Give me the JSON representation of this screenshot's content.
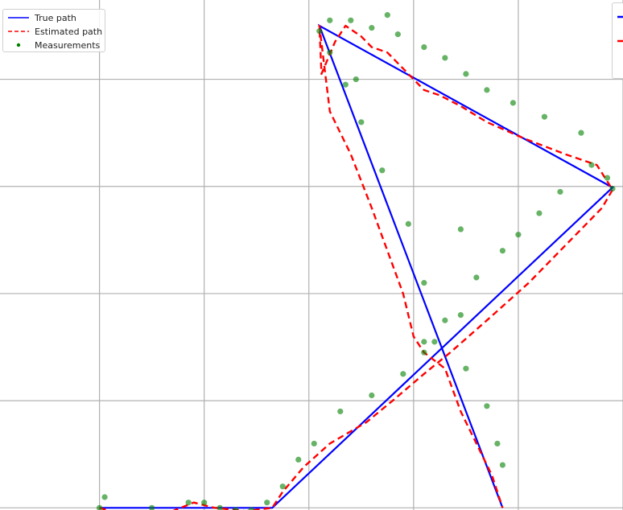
{
  "chart_data": {
    "type": "line",
    "title": "",
    "xlabel": "",
    "ylabel": "",
    "grid": true,
    "xlim": [
      -0.95,
      5.0
    ],
    "ylim": [
      -0.02,
      4.74
    ],
    "xticks": [
      0,
      1,
      2,
      3,
      4,
      5
    ],
    "yticks": [
      0,
      1,
      2,
      3,
      4
    ],
    "legend_position": "top-left",
    "legend": [
      {
        "name": "True path",
        "style": "solid-line",
        "color": "#0000ff"
      },
      {
        "name": "Estimated path",
        "style": "dashed-line",
        "color": "#ff0000"
      },
      {
        "name": "Measurements",
        "style": "dot",
        "color": "#008000"
      }
    ],
    "series": [
      {
        "name": "True path",
        "color": "#0000ff",
        "x": [
          0.0,
          1.65,
          4.9,
          2.1,
          3.85
        ],
        "y": [
          0.0,
          0.0,
          2.99,
          4.5,
          0.0
        ]
      },
      {
        "name": "Estimated path",
        "color": "#ff0000",
        "x": [
          0.0,
          0.1,
          0.3,
          0.7,
          0.9,
          1.1,
          1.4,
          1.65,
          1.75,
          1.95,
          2.2,
          2.55,
          2.8,
          3.1,
          3.35,
          3.7,
          4.1,
          4.4,
          4.8,
          4.9,
          4.75,
          4.45,
          4.05,
          3.7,
          3.45,
          3.25,
          3.1,
          2.9,
          2.75,
          2.6,
          2.5,
          2.35,
          2.25,
          2.12,
          2.1,
          2.2,
          2.4,
          2.6,
          2.75,
          2.9,
          3.0,
          3.1,
          3.3,
          3.45,
          3.6,
          3.75,
          3.85
        ],
        "y": [
          0.0,
          -0.03,
          -0.05,
          -0.03,
          0.05,
          0.0,
          -0.03,
          0.0,
          0.15,
          0.38,
          0.6,
          0.8,
          1.0,
          1.25,
          1.45,
          1.75,
          2.1,
          2.4,
          2.8,
          2.97,
          3.2,
          3.3,
          3.45,
          3.6,
          3.75,
          3.85,
          3.9,
          4.1,
          4.25,
          4.3,
          4.4,
          4.5,
          4.35,
          4.05,
          4.5,
          3.7,
          3.3,
          2.8,
          2.4,
          2.0,
          1.6,
          1.45,
          1.3,
          0.9,
          0.6,
          0.3,
          0.0
        ]
      },
      {
        "name": "Measurements",
        "color": "#008000",
        "type": "scatter",
        "x": [
          0.0,
          0.05,
          0.15,
          0.3,
          0.5,
          0.7,
          0.85,
          1.0,
          1.15,
          1.3,
          1.45,
          1.6,
          1.75,
          1.9,
          2.05,
          2.3,
          2.6,
          2.9,
          3.1,
          3.2,
          3.45,
          3.6,
          3.85,
          4.0,
          4.2,
          4.4,
          4.7,
          4.85,
          4.9,
          4.6,
          4.25,
          3.95,
          3.7,
          3.5,
          3.3,
          3.1,
          2.85,
          2.6,
          2.4,
          2.2,
          2.1,
          2.2,
          2.35,
          2.5,
          2.7,
          2.95,
          3.1,
          3.3,
          3.5,
          3.7,
          3.85,
          3.8,
          2.45,
          2.75,
          3.45,
          3.1
        ],
        "y": [
          0.0,
          0.1,
          -0.05,
          -0.05,
          0.0,
          -0.05,
          0.05,
          0.05,
          0.0,
          -0.02,
          -0.02,
          0.05,
          0.2,
          0.45,
          0.6,
          0.9,
          1.05,
          1.25,
          1.45,
          1.55,
          1.8,
          2.15,
          2.4,
          2.55,
          2.75,
          2.95,
          3.2,
          3.08,
          2.98,
          3.5,
          3.65,
          3.78,
          3.9,
          4.05,
          4.2,
          4.3,
          4.42,
          4.48,
          4.55,
          4.55,
          4.45,
          4.25,
          3.95,
          3.6,
          3.15,
          2.65,
          2.1,
          1.75,
          1.3,
          0.95,
          0.4,
          0.6,
          4.0,
          4.6,
          2.6,
          1.55
        ]
      }
    ]
  }
}
